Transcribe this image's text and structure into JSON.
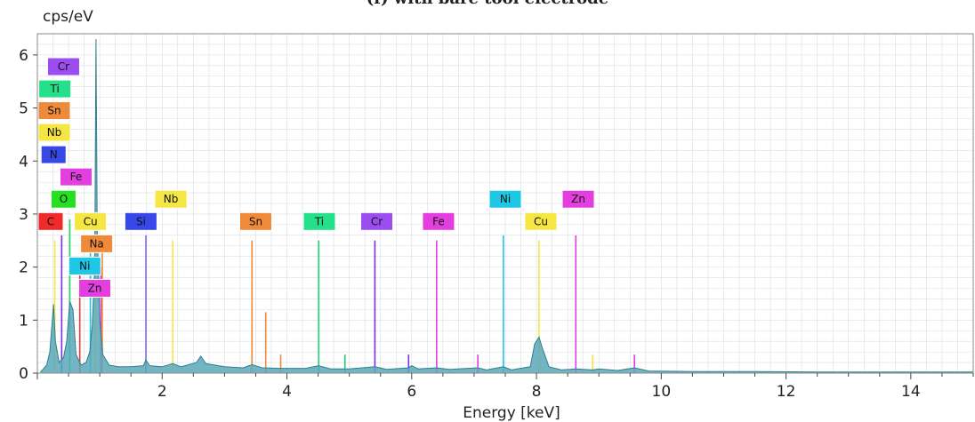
{
  "chart_data": {
    "type": "line",
    "title": "(f) with bare tool electrode",
    "xlabel": "Energy [keV]",
    "ylabel": "cps/eV",
    "xlim": [
      0,
      15
    ],
    "ylim": [
      0,
      6.4
    ],
    "x_ticks": [
      2,
      4,
      6,
      8,
      10,
      12,
      14
    ],
    "y_ticks": [
      0,
      1,
      2,
      3,
      4,
      5,
      6
    ],
    "grid": true,
    "spectrum": [
      [
        0.05,
        0.02
      ],
      [
        0.15,
        0.15
      ],
      [
        0.2,
        0.4
      ],
      [
        0.26,
        1.3
      ],
      [
        0.29,
        0.6
      ],
      [
        0.35,
        0.2
      ],
      [
        0.42,
        0.3
      ],
      [
        0.47,
        0.6
      ],
      [
        0.52,
        1.35
      ],
      [
        0.57,
        1.2
      ],
      [
        0.62,
        0.35
      ],
      [
        0.7,
        0.15
      ],
      [
        0.78,
        0.2
      ],
      [
        0.84,
        0.4
      ],
      [
        0.88,
        0.9
      ],
      [
        0.92,
        2.0
      ],
      [
        0.94,
        6.3
      ],
      [
        0.96,
        2.7
      ],
      [
        1.0,
        1.0
      ],
      [
        1.05,
        0.35
      ],
      [
        1.15,
        0.15
      ],
      [
        1.3,
        0.12
      ],
      [
        1.5,
        0.12
      ],
      [
        1.7,
        0.14
      ],
      [
        1.74,
        0.25
      ],
      [
        1.8,
        0.14
      ],
      [
        2.0,
        0.12
      ],
      [
        2.17,
        0.18
      ],
      [
        2.3,
        0.12
      ],
      [
        2.55,
        0.2
      ],
      [
        2.62,
        0.32
      ],
      [
        2.7,
        0.18
      ],
      [
        3.0,
        0.12
      ],
      [
        3.3,
        0.1
      ],
      [
        3.44,
        0.16
      ],
      [
        3.6,
        0.1
      ],
      [
        3.9,
        0.09
      ],
      [
        4.3,
        0.09
      ],
      [
        4.51,
        0.14
      ],
      [
        4.7,
        0.08
      ],
      [
        5.0,
        0.08
      ],
      [
        5.41,
        0.12
      ],
      [
        5.6,
        0.07
      ],
      [
        5.95,
        0.1
      ],
      [
        6.0,
        0.14
      ],
      [
        6.1,
        0.08
      ],
      [
        6.4,
        0.1
      ],
      [
        6.6,
        0.07
      ],
      [
        7.06,
        0.1
      ],
      [
        7.2,
        0.06
      ],
      [
        7.47,
        0.12
      ],
      [
        7.6,
        0.06
      ],
      [
        7.9,
        0.12
      ],
      [
        7.97,
        0.55
      ],
      [
        8.04,
        0.68
      ],
      [
        8.1,
        0.45
      ],
      [
        8.2,
        0.12
      ],
      [
        8.4,
        0.06
      ],
      [
        8.63,
        0.08
      ],
      [
        8.9,
        0.06
      ],
      [
        9.0,
        0.08
      ],
      [
        9.3,
        0.05
      ],
      [
        9.57,
        0.1
      ],
      [
        9.8,
        0.04
      ],
      [
        10.5,
        0.03
      ],
      [
        11.5,
        0.03
      ],
      [
        12.5,
        0.02
      ],
      [
        13.5,
        0.02
      ],
      [
        14.5,
        0.02
      ],
      [
        15.0,
        0.02
      ]
    ],
    "peak_lines": [
      {
        "x": 0.28,
        "y": 2.5,
        "color": "#f5e642"
      },
      {
        "x": 0.39,
        "y": 2.6,
        "color": "#7b2fe0"
      },
      {
        "x": 0.52,
        "y": 2.9,
        "color": "#1fd36d"
      },
      {
        "x": 0.68,
        "y": 2.0,
        "color": "#ee3a3a"
      },
      {
        "x": 0.85,
        "y": 2.5,
        "color": "#1ec7e6"
      },
      {
        "x": 0.93,
        "y": 2.6,
        "color": "#f5e642"
      },
      {
        "x": 1.02,
        "y": 2.0,
        "color": "#e43ee0"
      },
      {
        "x": 1.04,
        "y": 2.5,
        "color": "#ee8a3a"
      },
      {
        "x": 1.74,
        "y": 2.6,
        "color": "#7b6cf0"
      },
      {
        "x": 2.17,
        "y": 2.5,
        "color": "#f5e642"
      },
      {
        "x": 3.44,
        "y": 2.5,
        "color": "#ee8a3a"
      },
      {
        "x": 3.66,
        "y": 1.15,
        "color": "#ee8a3a"
      },
      {
        "x": 3.9,
        "y": 0.35,
        "color": "#ee8a3a"
      },
      {
        "x": 4.51,
        "y": 2.5,
        "color": "#1fd36d"
      },
      {
        "x": 4.93,
        "y": 0.35,
        "color": "#1fd36d"
      },
      {
        "x": 5.41,
        "y": 2.5,
        "color": "#7b2fe0"
      },
      {
        "x": 5.95,
        "y": 0.35,
        "color": "#7b2fe0"
      },
      {
        "x": 6.4,
        "y": 2.5,
        "color": "#e43ee0"
      },
      {
        "x": 7.06,
        "y": 0.35,
        "color": "#e43ee0"
      },
      {
        "x": 7.47,
        "y": 2.6,
        "color": "#1ec7e6"
      },
      {
        "x": 8.04,
        "y": 2.5,
        "color": "#f5e642"
      },
      {
        "x": 8.63,
        "y": 2.6,
        "color": "#e43ee0"
      },
      {
        "x": 8.9,
        "y": 0.35,
        "color": "#f5e642"
      },
      {
        "x": 9.57,
        "y": 0.35,
        "color": "#e43ee0"
      }
    ],
    "peak_labels": [
      {
        "text": "Cr",
        "x": 0.42,
        "y": 5.78,
        "bg": "#9b4df0",
        "fg": "#ffffff"
      },
      {
        "text": "Ti",
        "x": 0.28,
        "y": 5.36,
        "bg": "#25e08a",
        "fg": "#ffffff"
      },
      {
        "text": "Sn",
        "x": 0.22,
        "y": 4.95,
        "bg": "#ee8a3a",
        "fg": "#ffffff"
      },
      {
        "text": "Nb",
        "x": 0.12,
        "y": 4.54,
        "bg": "#f5e642",
        "fg": "#333333"
      },
      {
        "text": "N",
        "x": 0.26,
        "y": 4.12,
        "bg": "#3848e8",
        "fg": "#ffffff"
      },
      {
        "text": "Fe",
        "x": 0.62,
        "y": 3.7,
        "bg": "#e43ee0",
        "fg": "#333333"
      },
      {
        "text": "O",
        "x": 0.42,
        "y": 3.28,
        "bg": "#25e020",
        "fg": "#333333"
      },
      {
        "text": "C",
        "x": 0.18,
        "y": 2.86,
        "bg": "#ee2a2a",
        "fg": "#333333"
      },
      {
        "text": "Cu",
        "x": 0.85,
        "y": 2.86,
        "bg": "#f5e642",
        "fg": "#333333"
      },
      {
        "text": "Na",
        "x": 0.95,
        "y": 2.44,
        "bg": "#ee8a3a",
        "fg": "#333333"
      },
      {
        "text": "Ni",
        "x": 0.76,
        "y": 2.02,
        "bg": "#1ec7e6",
        "fg": "#ffffff"
      },
      {
        "text": "Zn",
        "x": 0.92,
        "y": 1.6,
        "bg": "#e43ee0",
        "fg": "#333333"
      },
      {
        "text": "Si",
        "x": 1.66,
        "y": 2.86,
        "bg": "#3848e8",
        "fg": "#ffffff"
      },
      {
        "text": "Nb",
        "x": 2.14,
        "y": 3.28,
        "bg": "#f5e642",
        "fg": "#333333"
      },
      {
        "text": "Sn",
        "x": 3.5,
        "y": 2.86,
        "bg": "#ee8a3a",
        "fg": "#ffffff"
      },
      {
        "text": "Ti",
        "x": 4.52,
        "y": 2.86,
        "bg": "#25e08a",
        "fg": "#ffffff"
      },
      {
        "text": "Cr",
        "x": 5.44,
        "y": 2.86,
        "bg": "#9b4df0",
        "fg": "#ffffff"
      },
      {
        "text": "Fe",
        "x": 6.43,
        "y": 2.86,
        "bg": "#e43ee0",
        "fg": "#333333"
      },
      {
        "text": "Ni",
        "x": 7.5,
        "y": 3.28,
        "bg": "#1ec7e6",
        "fg": "#ffffff"
      },
      {
        "text": "Cu",
        "x": 8.07,
        "y": 2.86,
        "bg": "#f5e642",
        "fg": "#333333"
      },
      {
        "text": "Zn",
        "x": 8.67,
        "y": 3.28,
        "bg": "#e43ee0",
        "fg": "#333333"
      }
    ],
    "colors": {
      "spectrum_fill": "#5aa8b8",
      "spectrum_line": "#2f7f8f",
      "grid": "#d9dde2",
      "frame": "#8a8a8a"
    }
  }
}
